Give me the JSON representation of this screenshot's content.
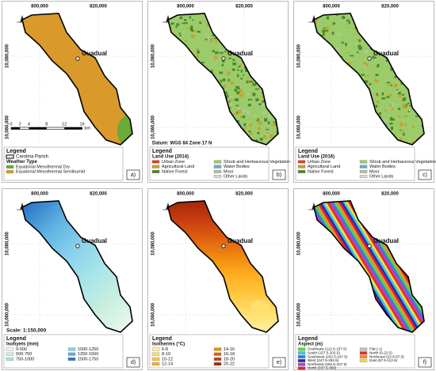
{
  "coords": {
    "x": [
      "800,000",
      "820,000"
    ],
    "y": [
      "10,080,000",
      "10,060,000"
    ]
  },
  "place": "Guadual",
  "panels": [
    {
      "label": "a)",
      "legend_title": "Legend",
      "boundary": "Carolina Parish",
      "heading": "Weather Type",
      "items": [
        {
          "name": "Equatorial Mesothermal Dry",
          "color": "#6aaa3a"
        },
        {
          "name": "Equatorial Mesothermal Semihumid",
          "color": "#d99a2b"
        }
      ],
      "scale": {
        "ticks": [
          0,
          2,
          4,
          8,
          12,
          16
        ],
        "unit": "km"
      }
    },
    {
      "label": "b)",
      "legend_title": "Legend",
      "heading": "Land Use (2014)",
      "datum": "Datum: WGS 84 Zone 17 N",
      "items": [
        {
          "name": "Urban Zone",
          "color": "#e04020"
        },
        {
          "name": "Agricultural Land",
          "color": "#c8a030"
        },
        {
          "name": "Native Forest",
          "color": "#4c8a2a"
        },
        {
          "name": "Shrub and Herbaceous Vegetation",
          "color": "#9ccc6a"
        },
        {
          "name": "Water Bodies",
          "color": "#6fa8dc"
        },
        {
          "name": "Moor",
          "color": "#b0c8a0"
        },
        {
          "name": "Other Lands",
          "color": "#d8d8d8"
        }
      ]
    },
    {
      "label": "c)",
      "legend_title": "Legend",
      "heading": "Land Use (2016)",
      "items": [
        {
          "name": "Urban Zone",
          "color": "#e04020"
        },
        {
          "name": "Agricultural Land",
          "color": "#c8a030"
        },
        {
          "name": "Native Forest",
          "color": "#4c8a2a"
        },
        {
          "name": "Shrub and Herbaceous Vegetation",
          "color": "#9ccc6a"
        },
        {
          "name": "Water Bodies",
          "color": "#6fa8dc"
        },
        {
          "name": "Moor",
          "color": "#b0c8a0"
        },
        {
          "name": "Other Lands",
          "color": "#d8d8d8"
        }
      ]
    },
    {
      "label": "d)",
      "legend_title": "Legend",
      "heading": "Isohyets (mm)",
      "scale_text": "Scale: 1:150,000",
      "items": [
        {
          "name": "0-500",
          "color": "#e8f8e8"
        },
        {
          "name": "500-750",
          "color": "#c8eee0"
        },
        {
          "name": "750-1000",
          "color": "#a8e4e8"
        },
        {
          "name": "1000-1250",
          "color": "#88d0ec"
        },
        {
          "name": "1250-1500",
          "color": "#5cb0e0"
        },
        {
          "name": "1500-1750",
          "color": "#2c78c8"
        }
      ]
    },
    {
      "label": "e)",
      "legend_title": "Legend",
      "heading": "Isotherms (°C)",
      "items": [
        {
          "name": "6-8",
          "color": "#fff0a0"
        },
        {
          "name": "8-10",
          "color": "#ffe070"
        },
        {
          "name": "10-12",
          "color": "#ffc840"
        },
        {
          "name": "12-14",
          "color": "#ffb020"
        },
        {
          "name": "14-16",
          "color": "#f08a10"
        },
        {
          "name": "16-18",
          "color": "#e06010"
        },
        {
          "name": "18-20",
          "color": "#c83c10"
        },
        {
          "name": "20-22",
          "color": "#a02808"
        }
      ]
    },
    {
      "label": "f)",
      "legend_title": "Legend",
      "heading": "Aspect (m)",
      "items": [
        {
          "name": "Southeast (112.5-157.5)",
          "color": "#4cd94c"
        },
        {
          "name": "South (157.5-202.5)",
          "color": "#3cc8e8"
        },
        {
          "name": "Southwest (202.5-247.5)",
          "color": "#3a7ae0"
        },
        {
          "name": "West (247.5-292.5)",
          "color": "#2a2ab0"
        },
        {
          "name": "Northwest (292.5-337.5)",
          "color": "#c03cc0"
        },
        {
          "name": "North (337.5-360)",
          "color": "#e0202a"
        },
        {
          "name": "Flat (-1)",
          "color": "#c0c0c0"
        },
        {
          "name": "North (0-22.5)",
          "color": "#e03020"
        },
        {
          "name": "Northeast (22.5-67.5)",
          "color": "#f09030"
        },
        {
          "name": "East (67.5-112.5)",
          "color": "#f0e040"
        }
      ]
    }
  ]
}
